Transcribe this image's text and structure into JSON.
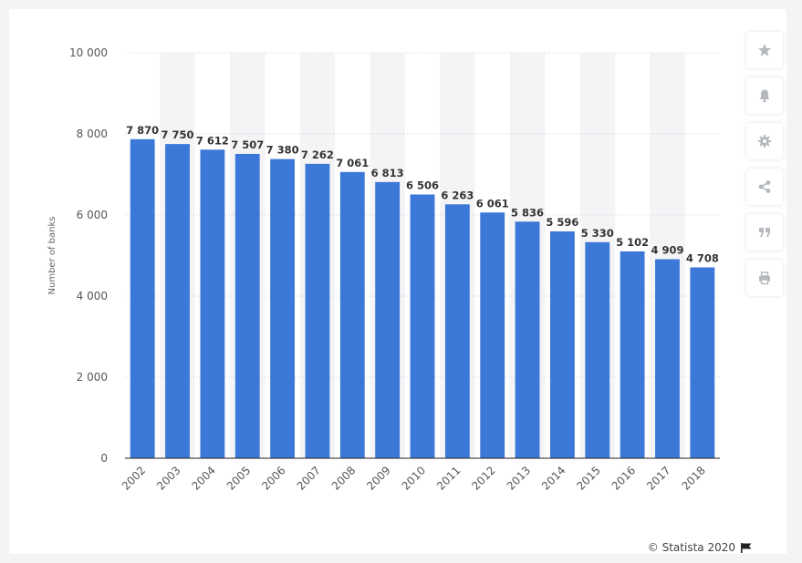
{
  "toolbar": {
    "icons": [
      "star-icon",
      "bell-icon",
      "gear-icon",
      "share-icon",
      "quote-icon",
      "print-icon"
    ]
  },
  "footer": {
    "credit": "© Statista 2020"
  },
  "colors": {
    "bar": "#3c78d8",
    "band": "#f4f4f6",
    "grid": "#cfd3d8"
  },
  "chart_data": {
    "type": "bar",
    "title": "",
    "xlabel": "",
    "ylabel": "Number of banks",
    "categories": [
      "2002",
      "2003",
      "2004",
      "2005",
      "2006",
      "2007",
      "2008",
      "2009",
      "2010",
      "2011",
      "2012",
      "2013",
      "2014",
      "2015",
      "2016",
      "2017",
      "2018"
    ],
    "values": [
      7870,
      7750,
      7612,
      7507,
      7380,
      7262,
      7061,
      6813,
      6506,
      6263,
      6061,
      5836,
      5596,
      5330,
      5102,
      4909,
      4708
    ],
    "value_labels": [
      "7 870",
      "7 750",
      "7 612",
      "7 507",
      "7 380",
      "7 262",
      "7 061",
      "6 813",
      "6 506",
      "6 263",
      "6 061",
      "5 836",
      "5 596",
      "5 330",
      "5 102",
      "4 909",
      "4 708"
    ],
    "yticks": [
      0,
      2000,
      4000,
      6000,
      8000,
      10000
    ],
    "ytick_labels": [
      "0",
      "2 000",
      "4 000",
      "6 000",
      "8 000",
      "10 000"
    ],
    "ylim": [
      0,
      10000
    ],
    "grid": true,
    "legend": "none"
  }
}
